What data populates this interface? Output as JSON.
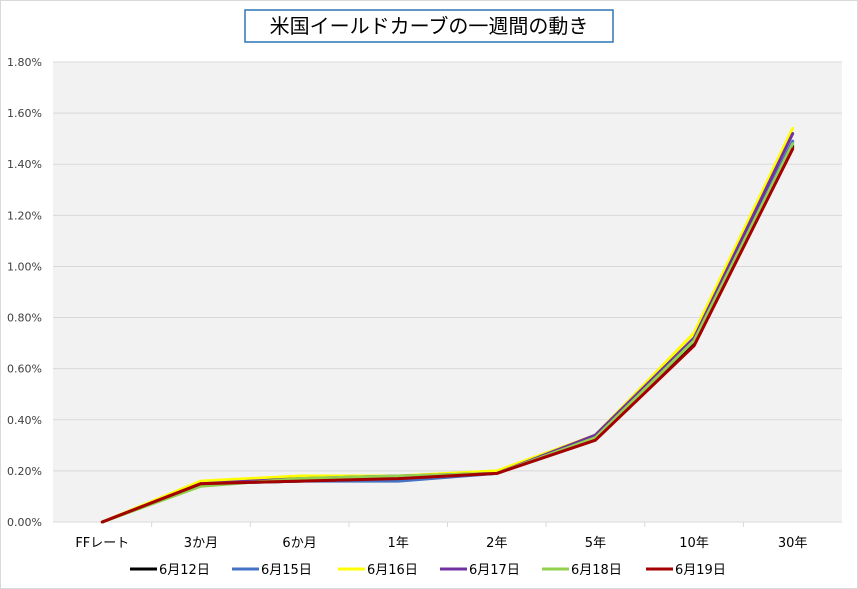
{
  "chart_data": {
    "type": "line",
    "title": "米国イールドカーブの一週間の動き",
    "categories": [
      "FFレート",
      "3か月",
      "6か月",
      "1年",
      "2年",
      "5年",
      "10年",
      "30年"
    ],
    "y_ticks": [
      "0.00%",
      "0.20%",
      "0.40%",
      "0.60%",
      "0.80%",
      "1.00%",
      "1.20%",
      "1.40%",
      "1.60%",
      "1.80%"
    ],
    "ylim": [
      0,
      1.8
    ],
    "y_unit": "%",
    "grid": true,
    "legend_position": "bottom",
    "series": [
      {
        "name": "6月12日",
        "color": "#000000",
        "values": [
          0.0,
          0.15,
          0.16,
          0.17,
          0.19,
          0.33,
          0.7,
          1.47
        ]
      },
      {
        "name": "6月15日",
        "color": "#4472C4",
        "values": [
          0.0,
          0.15,
          0.16,
          0.16,
          0.19,
          0.34,
          0.71,
          1.49
        ]
      },
      {
        "name": "6月16日",
        "color": "#FFFF00",
        "values": [
          0.0,
          0.16,
          0.18,
          0.18,
          0.2,
          0.34,
          0.74,
          1.54
        ]
      },
      {
        "name": "6月17日",
        "color": "#7030A0",
        "values": [
          0.0,
          0.15,
          0.17,
          0.18,
          0.19,
          0.34,
          0.72,
          1.52
        ]
      },
      {
        "name": "6月18日",
        "color": "#92D050",
        "values": [
          0.0,
          0.14,
          0.17,
          0.18,
          0.19,
          0.33,
          0.71,
          1.48
        ]
      },
      {
        "name": "6月19日",
        "color": "#A50000",
        "values": [
          0.0,
          0.15,
          0.16,
          0.17,
          0.19,
          0.32,
          0.69,
          1.46
        ]
      }
    ]
  }
}
